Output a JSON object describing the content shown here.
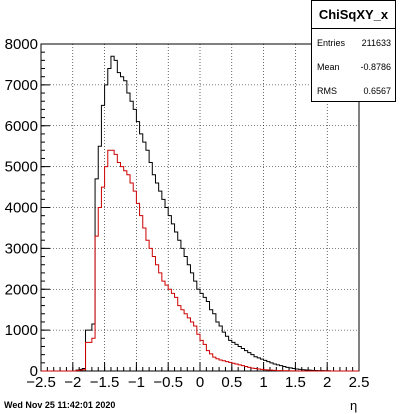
{
  "timestamp": "Wed Nov 25 11:42:01 2020",
  "stats": {
    "title": "ChiSqXY_x",
    "entries_label": "Entries",
    "entries_value": "211633",
    "mean_label": "Mean",
    "mean_value": "-0.8786",
    "rms_label": "RMS",
    "rms_value": "0.6567"
  },
  "colors": {
    "series1": "#000000",
    "series2": "#cc0000"
  },
  "chart_data": {
    "type": "histogram",
    "title": "",
    "xlabel": "η",
    "ylabel": "",
    "xlim": [
      -2.5,
      2.5
    ],
    "ylim": [
      0,
      8000
    ],
    "grid": true,
    "bin_width": 0.05,
    "x_ticks": [
      -2.5,
      -2,
      -1.5,
      -1,
      -0.5,
      0,
      0.5,
      1,
      1.5,
      2,
      2.5
    ],
    "x_tick_labels": [
      "−2.5",
      "−2",
      "−1.5",
      "−1",
      "−0.5",
      "0",
      "0.5",
      "1",
      "1.5",
      "2",
      "2.5"
    ],
    "y_ticks": [
      0,
      1000,
      2000,
      3000,
      4000,
      5000,
      6000,
      7000,
      8000
    ],
    "y_tick_labels": [
      "0",
      "1000",
      "2000",
      "3000",
      "4000",
      "5000",
      "6000",
      "7000",
      "8000"
    ],
    "series": [
      {
        "values": [
          0,
          0,
          0,
          0,
          0,
          0,
          0,
          0,
          0,
          0,
          0,
          20,
          40,
          60,
          1000,
          1000,
          1150,
          4700,
          5500,
          6500,
          7000,
          7400,
          7700,
          7600,
          7300,
          7200,
          7100,
          6800,
          6600,
          6400,
          6100,
          5800,
          5600,
          5400,
          5100,
          4800,
          4600,
          4400,
          4200,
          4000,
          3800,
          3600,
          3400,
          3200,
          3000,
          2800,
          2600,
          2400,
          2200,
          2000,
          1900,
          1800,
          1700,
          1500,
          1400,
          1200,
          1100,
          950,
          850,
          750,
          700,
          650,
          600,
          550,
          500,
          450,
          400,
          350,
          320,
          290,
          260,
          230,
          200,
          170,
          150,
          130,
          110,
          90,
          75,
          60,
          50,
          40,
          30,
          25,
          20,
          15,
          12,
          10,
          8,
          6,
          5,
          0,
          0,
          0,
          0,
          0,
          0,
          0,
          0,
          0
        ]
      },
      {
        "values": [
          0,
          0,
          0,
          0,
          0,
          0,
          0,
          0,
          0,
          0,
          0,
          10,
          20,
          30,
          700,
          700,
          800,
          3300,
          4000,
          4500,
          5000,
          5400,
          5400,
          5300,
          5100,
          5000,
          4900,
          4800,
          4600,
          4400,
          4100,
          3800,
          3500,
          3200,
          3000,
          2800,
          2600,
          2400,
          2200,
          2100,
          2000,
          1900,
          1800,
          1600,
          1500,
          1400,
          1300,
          1200,
          1100,
          900,
          750,
          650,
          500,
          420,
          340,
          300,
          270,
          250,
          230,
          210,
          190,
          170,
          150,
          130,
          110,
          90,
          70,
          60,
          50,
          40,
          30,
          25,
          20,
          15,
          10,
          8,
          6,
          5,
          4,
          3,
          2,
          1,
          0,
          0,
          0,
          0,
          0,
          0,
          0,
          0,
          0,
          0,
          0,
          0,
          0,
          0,
          0,
          0,
          0,
          0
        ]
      }
    ]
  }
}
